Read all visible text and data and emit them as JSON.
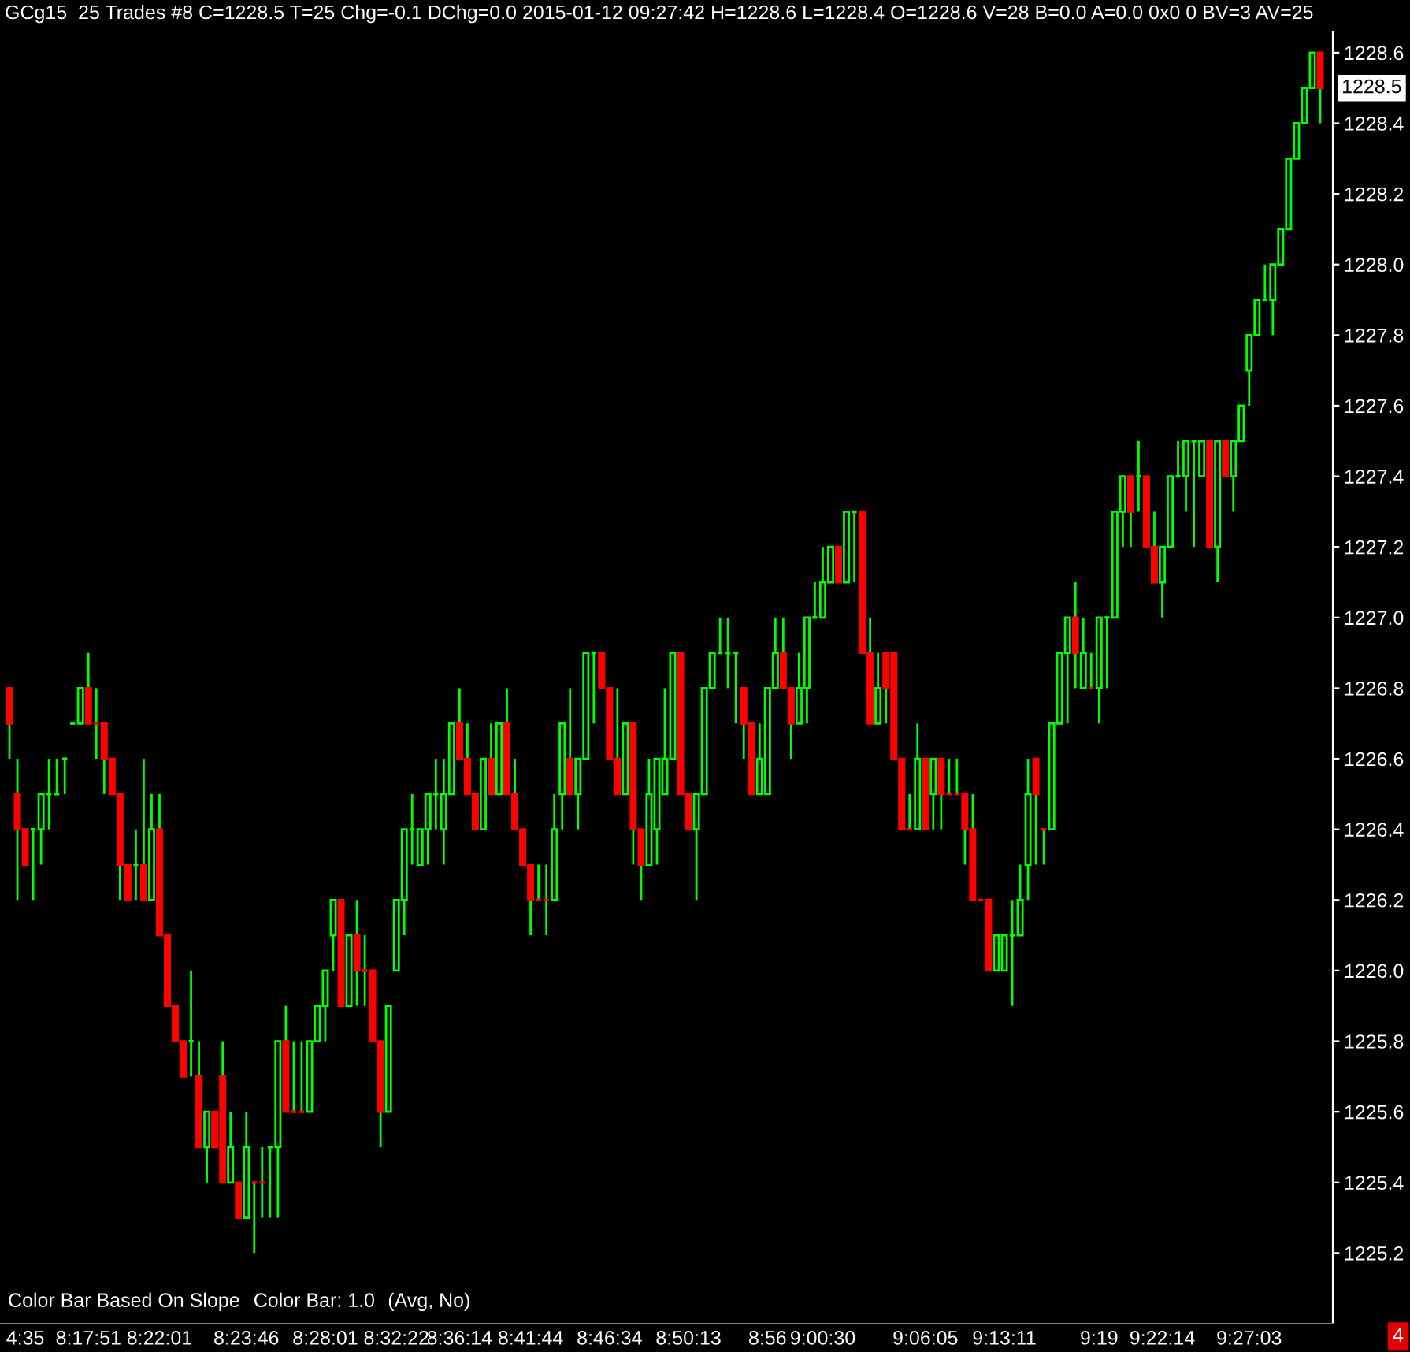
{
  "chart_data": {
    "type": "candlestick",
    "title": "GCg15  25 Trades #8 C=1228.5 T=25 Chg=-0.1 DChg=0.0 2015-01-12 09:27:42 H=1228.6 L=1228.4 O=1228.6 V=28 B=0.0 A=0.0 0x0 0 BV=3 AV=25",
    "categories": [
      null,
      null,
      "4:35",
      null,
      null,
      null,
      null,
      null,
      null,
      null,
      "8:17:51",
      null,
      null,
      null,
      null,
      null,
      null,
      null,
      null,
      "8:22:01",
      null,
      null,
      null,
      null,
      null,
      null,
      null,
      null,
      null,
      null,
      "8:23:46",
      null,
      null,
      null,
      null,
      null,
      null,
      null,
      null,
      null,
      "8:28:01",
      null,
      null,
      null,
      null,
      null,
      null,
      null,
      null,
      "8:32:22",
      null,
      null,
      null,
      null,
      null,
      null,
      null,
      "8:36:14",
      null,
      null,
      null,
      null,
      null,
      null,
      null,
      null,
      "8:41:44",
      null,
      null,
      null,
      null,
      null,
      null,
      null,
      null,
      null,
      "8:46:34",
      null,
      null,
      null,
      null,
      null,
      null,
      null,
      null,
      null,
      "8:50:13",
      null,
      null,
      null,
      null,
      null,
      null,
      null,
      null,
      null,
      "8:56",
      null,
      null,
      null,
      null,
      null,
      null,
      "9:00:30",
      null,
      null,
      null,
      null,
      null,
      null,
      null,
      null,
      null,
      null,
      null,
      null,
      "9:06:05",
      null,
      null,
      null,
      null,
      null,
      null,
      null,
      null,
      null,
      "9:13:11",
      null,
      null,
      null,
      null,
      null,
      null,
      null,
      null,
      null,
      null,
      null,
      "9:19",
      null,
      null,
      null,
      null,
      null,
      null,
      null,
      "9:22:14",
      null,
      null,
      null,
      null,
      null,
      null,
      null,
      null,
      null,
      null,
      "9:27:03",
      null,
      null,
      null,
      null,
      null,
      null,
      null,
      null,
      null
    ],
    "ohlc": [
      [
        1226.8,
        1226.8,
        1226.6,
        1226.7
      ],
      [
        1226.5,
        1226.6,
        1226.2,
        1226.4
      ],
      [
        1226.4,
        1226.4,
        1226.3,
        1226.3
      ],
      [
        1226.4,
        1226.4,
        1226.2,
        1226.4
      ],
      [
        1226.4,
        1226.5,
        1226.3,
        1226.5
      ],
      [
        1226.5,
        1226.6,
        1226.4,
        1226.5
      ],
      [
        1226.5,
        1226.6,
        1226.5,
        1226.5
      ],
      [
        1226.6,
        1226.6,
        1226.5,
        1226.6
      ],
      [
        1226.7,
        1226.7,
        1226.7,
        1226.7
      ],
      [
        1226.7,
        1226.8,
        1226.7,
        1226.8
      ],
      [
        1226.8,
        1226.9,
        1226.7,
        1226.7
      ],
      [
        1226.7,
        1226.8,
        1226.6,
        1226.7
      ],
      [
        1226.7,
        1226.7,
        1226.5,
        1226.6
      ],
      [
        1226.6,
        1226.6,
        1226.5,
        1226.5
      ],
      [
        1226.5,
        1226.5,
        1226.2,
        1226.3
      ],
      [
        1226.3,
        1226.3,
        1226.2,
        1226.2
      ],
      [
        1226.3,
        1226.4,
        1226.2,
        1226.3
      ],
      [
        1226.3,
        1226.6,
        1226.2,
        1226.2
      ],
      [
        1226.2,
        1226.5,
        1226.2,
        1226.4
      ],
      [
        1226.4,
        1226.5,
        1226.1,
        1226.1
      ],
      [
        1226.1,
        1226.1,
        1225.9,
        1225.9
      ],
      [
        1225.9,
        1225.9,
        1225.8,
        1225.8
      ],
      [
        1225.8,
        1225.8,
        1225.7,
        1225.7
      ],
      [
        1225.8,
        1226.0,
        1225.7,
        1225.8
      ],
      [
        1225.7,
        1225.8,
        1225.5,
        1225.5
      ],
      [
        1225.5,
        1225.6,
        1225.4,
        1225.6
      ],
      [
        1225.6,
        1225.6,
        1225.5,
        1225.5
      ],
      [
        1225.7,
        1225.8,
        1225.4,
        1225.4
      ],
      [
        1225.4,
        1225.6,
        1225.4,
        1225.5
      ],
      [
        1225.4,
        1225.4,
        1225.3,
        1225.3
      ],
      [
        1225.3,
        1225.6,
        1225.3,
        1225.5
      ],
      [
        1225.4,
        1225.4,
        1225.2,
        1225.4
      ],
      [
        1225.4,
        1225.5,
        1225.3,
        1225.4
      ],
      [
        1225.5,
        1225.5,
        1225.3,
        1225.5
      ],
      [
        1225.5,
        1225.8,
        1225.3,
        1225.8
      ],
      [
        1225.8,
        1225.9,
        1225.6,
        1225.6
      ],
      [
        1225.6,
        1225.8,
        1225.6,
        1225.6
      ],
      [
        1225.6,
        1225.8,
        1225.6,
        1225.6
      ],
      [
        1225.6,
        1225.8,
        1225.6,
        1225.8
      ],
      [
        1225.8,
        1225.9,
        1225.8,
        1225.9
      ],
      [
        1225.9,
        1226.0,
        1225.8,
        1226.0
      ],
      [
        1226.1,
        1226.2,
        1226.0,
        1226.2
      ],
      [
        1226.2,
        1226.2,
        1225.9,
        1225.9
      ],
      [
        1225.9,
        1226.1,
        1225.9,
        1226.1
      ],
      [
        1226.1,
        1226.2,
        1225.9,
        1226.0
      ],
      [
        1226.0,
        1226.1,
        1225.9,
        1226.0
      ],
      [
        1226.0,
        1226.0,
        1225.8,
        1225.8
      ],
      [
        1225.8,
        1225.8,
        1225.5,
        1225.6
      ],
      [
        1225.6,
        1225.9,
        1225.6,
        1225.9
      ],
      [
        1226.0,
        1226.2,
        1226.0,
        1226.2
      ],
      [
        1226.2,
        1226.4,
        1226.1,
        1226.4
      ],
      [
        1226.4,
        1226.5,
        1226.3,
        1226.4
      ],
      [
        1226.3,
        1226.4,
        1226.3,
        1226.4
      ],
      [
        1226.4,
        1226.5,
        1226.3,
        1226.5
      ],
      [
        1226.5,
        1226.6,
        1226.4,
        1226.5
      ],
      [
        1226.4,
        1226.6,
        1226.3,
        1226.5
      ],
      [
        1226.5,
        1226.7,
        1226.5,
        1226.7
      ],
      [
        1226.7,
        1226.8,
        1226.6,
        1226.6
      ],
      [
        1226.6,
        1226.7,
        1226.5,
        1226.5
      ],
      [
        1226.5,
        1226.5,
        1226.4,
        1226.4
      ],
      [
        1226.4,
        1226.6,
        1226.4,
        1226.6
      ],
      [
        1226.6,
        1226.7,
        1226.5,
        1226.5
      ],
      [
        1226.5,
        1226.7,
        1226.5,
        1226.7
      ],
      [
        1226.7,
        1226.8,
        1226.5,
        1226.5
      ],
      [
        1226.5,
        1226.6,
        1226.4,
        1226.4
      ],
      [
        1226.4,
        1226.4,
        1226.3,
        1226.3
      ],
      [
        1226.3,
        1226.3,
        1226.1,
        1226.2
      ],
      [
        1226.2,
        1226.3,
        1226.2,
        1226.2
      ],
      [
        1226.2,
        1226.3,
        1226.1,
        1226.2
      ],
      [
        1226.2,
        1226.5,
        1226.2,
        1226.4
      ],
      [
        1226.5,
        1226.7,
        1226.4,
        1226.7
      ],
      [
        1226.6,
        1226.8,
        1226.5,
        1226.5
      ],
      [
        1226.5,
        1226.6,
        1226.4,
        1226.6
      ],
      [
        1226.6,
        1226.9,
        1226.6,
        1226.9
      ],
      [
        1226.9,
        1226.9,
        1226.7,
        1226.9
      ],
      [
        1226.9,
        1226.9,
        1226.8,
        1226.8
      ],
      [
        1226.8,
        1226.8,
        1226.6,
        1226.6
      ],
      [
        1226.6,
        1226.8,
        1226.5,
        1226.5
      ],
      [
        1226.5,
        1226.7,
        1226.5,
        1226.7
      ],
      [
        1226.7,
        1226.7,
        1226.3,
        1226.4
      ],
      [
        1226.4,
        1226.4,
        1226.2,
        1226.3
      ],
      [
        1226.3,
        1226.6,
        1226.3,
        1226.5
      ],
      [
        1226.4,
        1226.6,
        1226.3,
        1226.6
      ],
      [
        1226.5,
        1226.8,
        1226.5,
        1226.6
      ],
      [
        1226.6,
        1226.9,
        1226.6,
        1226.9
      ],
      [
        1226.9,
        1226.9,
        1226.5,
        1226.5
      ],
      [
        1226.5,
        1226.5,
        1226.4,
        1226.4
      ],
      [
        1226.4,
        1226.5,
        1226.2,
        1226.5
      ],
      [
        1226.5,
        1226.8,
        1226.5,
        1226.8
      ],
      [
        1226.8,
        1226.9,
        1226.8,
        1226.9
      ],
      [
        1226.9,
        1227.0,
        1226.9,
        1226.9
      ],
      [
        1226.9,
        1227.0,
        1226.8,
        1226.9
      ],
      [
        1226.9,
        1226.9,
        1226.7,
        1226.9
      ],
      [
        1226.8,
        1226.8,
        1226.6,
        1226.7
      ],
      [
        1226.7,
        1226.7,
        1226.5,
        1226.5
      ],
      [
        1226.5,
        1226.7,
        1226.5,
        1226.6
      ],
      [
        1226.5,
        1226.8,
        1226.5,
        1226.8
      ],
      [
        1226.8,
        1227.0,
        1226.8,
        1226.9
      ],
      [
        1226.9,
        1227.0,
        1226.8,
        1226.8
      ],
      [
        1226.8,
        1226.8,
        1226.6,
        1226.7
      ],
      [
        1226.7,
        1226.9,
        1226.7,
        1226.8
      ],
      [
        1226.8,
        1227.0,
        1226.7,
        1227.0
      ],
      [
        1227.0,
        1227.1,
        1227.0,
        1227.0
      ],
      [
        1227.0,
        1227.2,
        1227.0,
        1227.1
      ],
      [
        1227.1,
        1227.2,
        1227.1,
        1227.2
      ],
      [
        1227.2,
        1227.2,
        1227.1,
        1227.1
      ],
      [
        1227.1,
        1227.3,
        1227.1,
        1227.3
      ],
      [
        1227.3,
        1227.3,
        1227.1,
        1227.3
      ],
      [
        1227.3,
        1227.3,
        1226.9,
        1226.9
      ],
      [
        1226.9,
        1227.0,
        1226.7,
        1226.7
      ],
      [
        1226.7,
        1226.9,
        1226.7,
        1226.8
      ],
      [
        1226.9,
        1226.9,
        1226.7,
        1226.8
      ],
      [
        1226.9,
        1226.9,
        1226.6,
        1226.6
      ],
      [
        1226.6,
        1226.6,
        1226.4,
        1226.4
      ],
      [
        1226.4,
        1226.5,
        1226.4,
        1226.4
      ],
      [
        1226.4,
        1226.7,
        1226.4,
        1226.6
      ],
      [
        1226.6,
        1226.6,
        1226.4,
        1226.4
      ],
      [
        1226.5,
        1226.6,
        1226.4,
        1226.6
      ],
      [
        1226.6,
        1226.6,
        1226.4,
        1226.5
      ],
      [
        1226.5,
        1226.6,
        1226.5,
        1226.5
      ],
      [
        1226.5,
        1226.6,
        1226.5,
        1226.5
      ],
      [
        1226.5,
        1226.5,
        1226.3,
        1226.4
      ],
      [
        1226.4,
        1226.5,
        1226.2,
        1226.2
      ],
      [
        1226.2,
        1226.2,
        1226.2,
        1226.2
      ],
      [
        1226.2,
        1226.2,
        1226.0,
        1226.0
      ],
      [
        1226.0,
        1226.1,
        1226.0,
        1226.1
      ],
      [
        1226.0,
        1226.1,
        1226.0,
        1226.1
      ],
      [
        1226.1,
        1226.2,
        1225.9,
        1226.1
      ],
      [
        1226.1,
        1226.3,
        1226.1,
        1226.2
      ],
      [
        1226.3,
        1226.6,
        1226.2,
        1226.5
      ],
      [
        1226.6,
        1226.6,
        1226.3,
        1226.5
      ],
      [
        1226.4,
        1226.4,
        1226.3,
        1226.4
      ],
      [
        1226.4,
        1226.7,
        1226.4,
        1226.7
      ],
      [
        1226.7,
        1226.9,
        1226.7,
        1226.9
      ],
      [
        1226.9,
        1227.0,
        1226.7,
        1227.0
      ],
      [
        1227.0,
        1227.1,
        1226.8,
        1226.9
      ],
      [
        1226.8,
        1227.0,
        1226.8,
        1226.9
      ],
      [
        1226.8,
        1226.9,
        1226.8,
        1226.8
      ],
      [
        1226.8,
        1227.0,
        1226.7,
        1227.0
      ],
      [
        1227.0,
        1227.0,
        1226.8,
        1227.0
      ],
      [
        1227.0,
        1227.3,
        1227.0,
        1227.3
      ],
      [
        1227.3,
        1227.4,
        1227.2,
        1227.4
      ],
      [
        1227.4,
        1227.4,
        1227.2,
        1227.3
      ],
      [
        1227.4,
        1227.5,
        1227.3,
        1227.4
      ],
      [
        1227.4,
        1227.4,
        1227.2,
        1227.2
      ],
      [
        1227.2,
        1227.3,
        1227.1,
        1227.1
      ],
      [
        1227.1,
        1227.2,
        1227.0,
        1227.2
      ],
      [
        1227.2,
        1227.4,
        1227.2,
        1227.4
      ],
      [
        1227.4,
        1227.5,
        1227.4,
        1227.4
      ],
      [
        1227.4,
        1227.5,
        1227.3,
        1227.5
      ],
      [
        1227.5,
        1227.5,
        1227.2,
        1227.5
      ],
      [
        1227.4,
        1227.5,
        1227.4,
        1227.5
      ],
      [
        1227.5,
        1227.5,
        1227.2,
        1227.2
      ],
      [
        1227.2,
        1227.5,
        1227.1,
        1227.5
      ],
      [
        1227.5,
        1227.5,
        1227.4,
        1227.4
      ],
      [
        1227.4,
        1227.5,
        1227.3,
        1227.5
      ],
      [
        1227.5,
        1227.6,
        1227.5,
        1227.6
      ],
      [
        1227.7,
        1227.8,
        1227.6,
        1227.8
      ],
      [
        1227.8,
        1227.9,
        1227.8,
        1227.9
      ],
      [
        1227.9,
        1228.0,
        1227.9,
        1227.9
      ],
      [
        1227.9,
        1228.0,
        1227.8,
        1228.0
      ],
      [
        1228.0,
        1228.1,
        1228.0,
        1228.1
      ],
      [
        1228.1,
        1228.3,
        1228.1,
        1228.3
      ],
      [
        1228.3,
        1228.4,
        1228.3,
        1228.4
      ],
      [
        1228.4,
        1228.5,
        1228.4,
        1228.5
      ],
      [
        1228.5,
        1228.6,
        1228.5,
        1228.6
      ],
      [
        1228.6,
        1228.6,
        1228.4,
        1228.5
      ]
    ],
    "color": "#00ff00",
    "colors": [
      "#ff0000",
      "#ff0000",
      "#ff0000",
      "#00ff00",
      "#00ff00",
      "#00ff00",
      "#00ff00",
      "#00ff00",
      "#00ff00",
      "#00ff00",
      "#ff0000",
      "#ff0000",
      "#ff0000",
      "#ff0000",
      "#ff0000",
      "#ff0000",
      "#00ff00",
      "#ff0000",
      "#00ff00",
      "#ff0000",
      "#ff0000",
      "#ff0000",
      "#ff0000",
      "#00ff00",
      "#ff0000",
      "#00ff00",
      "#ff0000",
      "#ff0000",
      "#00ff00",
      "#ff0000",
      "#00ff00",
      "#ff0000",
      "#ff0000",
      "#00ff00",
      "#00ff00",
      "#ff0000",
      "#ff0000",
      "#ff0000",
      "#00ff00",
      "#00ff00",
      "#00ff00",
      "#00ff00",
      "#ff0000",
      "#00ff00",
      "#ff0000",
      "#ff0000",
      "#ff0000",
      "#ff0000",
      "#00ff00",
      "#00ff00",
      "#00ff00",
      "#00ff00",
      "#00ff00",
      "#00ff00",
      "#00ff00",
      "#00ff00",
      "#00ff00",
      "#ff0000",
      "#ff0000",
      "#ff0000",
      "#00ff00",
      "#ff0000",
      "#00ff00",
      "#ff0000",
      "#ff0000",
      "#ff0000",
      "#ff0000",
      "#ff0000",
      "#ff0000",
      "#00ff00",
      "#00ff00",
      "#ff0000",
      "#00ff00",
      "#00ff00",
      "#00ff00",
      "#ff0000",
      "#ff0000",
      "#ff0000",
      "#00ff00",
      "#ff0000",
      "#ff0000",
      "#00ff00",
      "#00ff00",
      "#00ff00",
      "#00ff00",
      "#ff0000",
      "#ff0000",
      "#00ff00",
      "#00ff00",
      "#00ff00",
      "#00ff00",
      "#00ff00",
      "#00ff00",
      "#ff0000",
      "#ff0000",
      "#00ff00",
      "#00ff00",
      "#00ff00",
      "#ff0000",
      "#ff0000",
      "#00ff00",
      "#00ff00",
      "#00ff00",
      "#00ff00",
      "#00ff00",
      "#ff0000",
      "#00ff00",
      "#00ff00",
      "#ff0000",
      "#ff0000",
      "#00ff00",
      "#ff0000",
      "#ff0000",
      "#ff0000",
      "#ff0000",
      "#00ff00",
      "#ff0000",
      "#00ff00",
      "#ff0000",
      "#ff0000",
      "#ff0000",
      "#ff0000",
      "#ff0000",
      "#ff0000",
      "#ff0000",
      "#00ff00",
      "#00ff00",
      "#00ff00",
      "#00ff00",
      "#00ff00",
      "#ff0000",
      "#ff0000",
      "#00ff00",
      "#00ff00",
      "#00ff00",
      "#ff0000",
      "#00ff00",
      "#ff0000",
      "#00ff00",
      "#00ff00",
      "#00ff00",
      "#00ff00",
      "#ff0000",
      "#00ff00",
      "#ff0000",
      "#ff0000",
      "#00ff00",
      "#00ff00",
      "#00ff00",
      "#00ff00",
      "#00ff00",
      "#00ff00",
      "#ff0000",
      "#00ff00",
      "#ff0000",
      "#00ff00",
      "#00ff00",
      "#00ff00",
      "#00ff00",
      "#00ff00",
      "#00ff00",
      "#00ff00",
      "#00ff00",
      "#00ff00",
      "#00ff00",
      "#00ff00",
      "#ff0000"
    ],
    "ylim": [
      1225.0,
      1228.66
    ],
    "yticks": [
      1225.2,
      1225.4,
      1225.6,
      1225.8,
      {
        "value": 1226,
        "label": "1226.0"
      },
      1226.2,
      1226.4,
      1226.6,
      1226.8,
      {
        "value": 1227,
        "label": "1227.0"
      },
      1227.2,
      1227.4,
      1227.6,
      1227.8,
      {
        "value": 1228,
        "label": "1228.0"
      },
      1228.2,
      1228.4,
      1228.6
    ],
    "grid": false,
    "annotations": [
      "Color Bar Based On Slope",
      "Color Bar: 1.0",
      "(Avg, No)",
      "1228.5",
      "4"
    ]
  }
}
